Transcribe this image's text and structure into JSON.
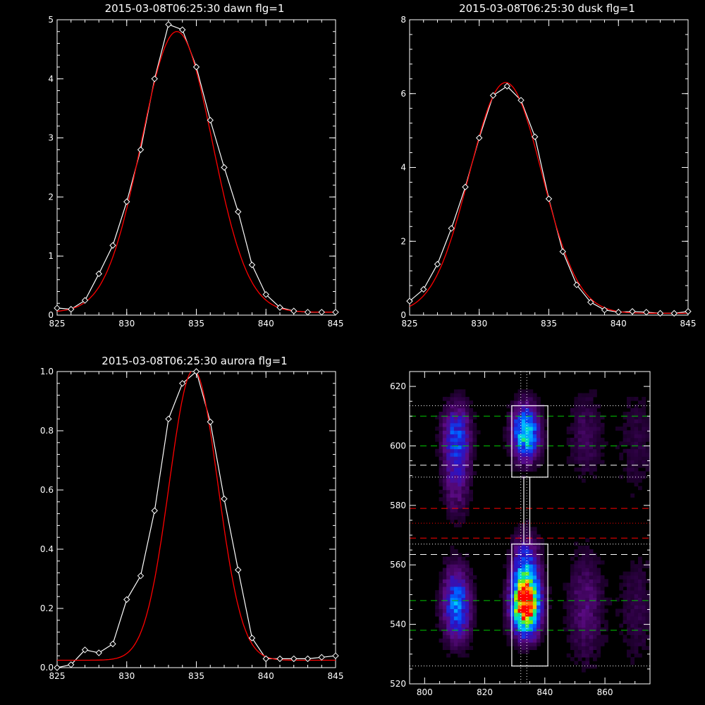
{
  "chart_data": [
    {
      "type": "line",
      "title": "2015-03-08T06:25:30 dawn flg=1",
      "xlim": [
        825,
        845
      ],
      "ylim": [
        0,
        5
      ],
      "x_ticks": [
        "825",
        "830",
        "835",
        "840",
        "845"
      ],
      "y_ticks": [
        "0",
        "1",
        "2",
        "3",
        "4",
        "5"
      ],
      "series": [
        {
          "kind": "data",
          "color": "#ffffff",
          "marker": "diamond",
          "x": [
            825,
            826,
            827,
            828,
            829,
            830,
            831,
            832,
            833,
            834,
            835,
            836,
            837,
            838,
            839,
            840,
            841,
            842,
            843,
            844,
            845
          ],
          "y": [
            0.12,
            0.1,
            0.25,
            0.7,
            1.18,
            1.92,
            2.8,
            4.0,
            4.92,
            4.83,
            4.2,
            3.3,
            2.5,
            1.75,
            0.85,
            0.35,
            0.13,
            0.07,
            0.05,
            0.05,
            0.05
          ]
        },
        {
          "kind": "fit",
          "color": "#ff0000",
          "amp": 4.75,
          "mu": 833.6,
          "sigma": 2.55,
          "base": 0.05
        }
      ]
    },
    {
      "type": "line",
      "title": "2015-03-08T06:25:30 dusk flg=1",
      "xlim": [
        825,
        845
      ],
      "ylim": [
        0,
        8
      ],
      "x_ticks": [
        "825",
        "830",
        "835",
        "840",
        "845"
      ],
      "y_ticks": [
        "0",
        "2",
        "4",
        "6",
        "8"
      ],
      "series": [
        {
          "kind": "data",
          "color": "#ffffff",
          "marker": "diamond",
          "x": [
            825,
            826,
            827,
            828,
            829,
            830,
            831,
            832,
            833,
            834,
            835,
            836,
            837,
            838,
            839,
            840,
            841,
            842,
            843,
            844,
            845
          ],
          "y": [
            0.38,
            0.7,
            1.38,
            2.35,
            3.47,
            4.8,
            5.95,
            6.2,
            5.82,
            4.83,
            3.15,
            1.72,
            0.82,
            0.35,
            0.14,
            0.08,
            0.1,
            0.08,
            0.05,
            0.05,
            0.1
          ]
        },
        {
          "kind": "fit",
          "color": "#ff0000",
          "amp": 6.25,
          "mu": 831.9,
          "sigma": 2.6,
          "base": 0.05
        }
      ]
    },
    {
      "type": "line",
      "title": "2015-03-08T06:25:30 aurora flg=1",
      "xlim": [
        825,
        845
      ],
      "ylim": [
        0,
        1.0
      ],
      "x_ticks": [
        "825",
        "830",
        "835",
        "840",
        "845"
      ],
      "y_ticks": [
        "0.0",
        "0.2",
        "0.4",
        "0.6",
        "0.8",
        "1.0"
      ],
      "series": [
        {
          "kind": "data",
          "color": "#ffffff",
          "marker": "diamond",
          "x": [
            825,
            826,
            827,
            828,
            829,
            830,
            831,
            832,
            833,
            834,
            835,
            836,
            837,
            838,
            839,
            840,
            841,
            842,
            843,
            844,
            845
          ],
          "y": [
            0.0,
            0.01,
            0.06,
            0.05,
            0.08,
            0.23,
            0.31,
            0.53,
            0.84,
            0.96,
            1.0,
            0.83,
            0.57,
            0.33,
            0.1,
            0.03,
            0.03,
            0.03,
            0.03,
            0.035,
            0.04
          ]
        },
        {
          "kind": "fit",
          "color": "#ff0000",
          "amp": 0.98,
          "mu": 834.8,
          "sigma": 1.75,
          "base": 0.025
        }
      ]
    },
    {
      "type": "heatmap",
      "title": "",
      "xlim": [
        795,
        875
      ],
      "ylim": [
        520,
        625
      ],
      "x_ticks": [
        "800",
        "820",
        "840",
        "860"
      ],
      "y_ticks": [
        "520",
        "540",
        "560",
        "580",
        "600",
        "620"
      ],
      "blobs": [
        {
          "x": 810,
          "y": 603,
          "sx": 3,
          "sy": 7,
          "amp": 0.35
        },
        {
          "x": 810,
          "y": 588,
          "sx": 3,
          "sy": 8,
          "amp": 0.18
        },
        {
          "x": 810,
          "y": 546,
          "sx": 3,
          "sy": 8,
          "amp": 0.45
        },
        {
          "x": 833,
          "y": 604,
          "sx": 3,
          "sy": 6,
          "amp": 0.6
        },
        {
          "x": 833,
          "y": 545,
          "sx": 3,
          "sy": 6,
          "amp": 1.0
        },
        {
          "x": 833,
          "y": 556,
          "sx": 3,
          "sy": 8,
          "amp": 0.45
        },
        {
          "x": 853,
          "y": 545,
          "sx": 4,
          "sy": 12,
          "amp": 0.15
        },
        {
          "x": 853,
          "y": 603,
          "sx": 4,
          "sy": 10,
          "amp": 0.1
        },
        {
          "x": 870,
          "y": 600,
          "sx": 4,
          "sy": 12,
          "amp": 0.07
        },
        {
          "x": 870,
          "y": 545,
          "sx": 4,
          "sy": 12,
          "amp": 0.08
        }
      ],
      "hlines": [
        {
          "y": 610,
          "color": "#00c800",
          "style": "dashed"
        },
        {
          "y": 600,
          "color": "#00c800",
          "style": "dashed"
        },
        {
          "y": 593.5,
          "color": "#ffffff",
          "style": "dashed"
        },
        {
          "y": 579,
          "color": "#ff0000",
          "style": "dashed"
        },
        {
          "y": 569,
          "color": "#ff0000",
          "style": "dashed"
        },
        {
          "y": 563.5,
          "color": "#ffffff",
          "style": "dashed"
        },
        {
          "y": 548,
          "color": "#00c800",
          "style": "dashed"
        },
        {
          "y": 538,
          "color": "#00c800",
          "style": "dashed"
        },
        {
          "y": 613.5,
          "color": "#ffffff",
          "style": "dotted"
        },
        {
          "y": 589.5,
          "color": "#ffffff",
          "style": "dotted"
        },
        {
          "y": 574,
          "color": "#ff0000",
          "style": "dotted"
        },
        {
          "y": 567,
          "color": "#ffffff",
          "style": "dotted"
        },
        {
          "y": 526,
          "color": "#ffffff",
          "style": "dotted"
        }
      ],
      "vlines": [
        {
          "x": 832,
          "color": "#ffffff",
          "style": "dotted"
        },
        {
          "x": 834,
          "color": "#ffffff",
          "style": "dotted"
        }
      ],
      "boxes": [
        {
          "x0": 829,
          "x1": 841,
          "y0": 589.5,
          "y1": 613.5,
          "color": "#ffffff"
        },
        {
          "x0": 829,
          "x1": 841,
          "y0": 526,
          "y1": 567,
          "color": "#ffffff"
        },
        {
          "x0": 833,
          "x1": 835,
          "y0": 567,
          "y1": 589.5,
          "color": "#ffffff"
        }
      ]
    }
  ]
}
